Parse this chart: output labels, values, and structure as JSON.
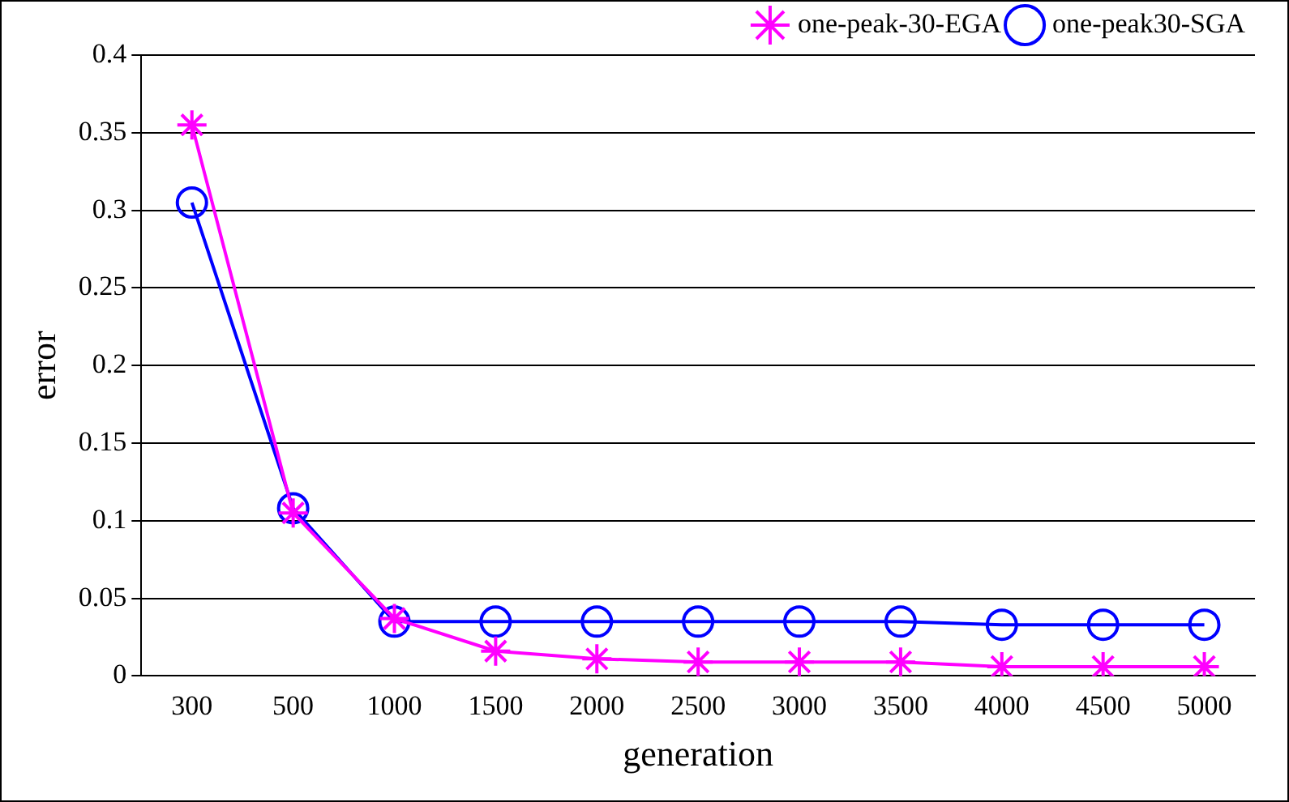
{
  "chart_data": {
    "type": "line",
    "xlabel": "generation",
    "ylabel": "error",
    "categories": [
      "300",
      "500",
      "1000",
      "1500",
      "2000",
      "2500",
      "3000",
      "3500",
      "4000",
      "4500",
      "5000"
    ],
    "series": [
      {
        "name": "one-peak-30-EGA",
        "color": "#ff00ff",
        "marker": "cross",
        "values": [
          0.355,
          0.105,
          0.037,
          0.016,
          0.011,
          0.009,
          0.009,
          0.009,
          0.006,
          0.006,
          0.006
        ]
      },
      {
        "name": "one-peak30-SGA",
        "color": "#0000ff",
        "marker": "circle",
        "values": [
          0.305,
          0.108,
          0.035,
          0.035,
          0.035,
          0.035,
          0.035,
          0.035,
          0.033,
          0.033,
          0.033
        ]
      }
    ],
    "ylim": [
      0,
      0.4
    ],
    "yticks": [
      0,
      0.05,
      0.1,
      0.15,
      0.2,
      0.25,
      0.3,
      0.35,
      0.4
    ],
    "grid": "y",
    "legend": "top right"
  }
}
